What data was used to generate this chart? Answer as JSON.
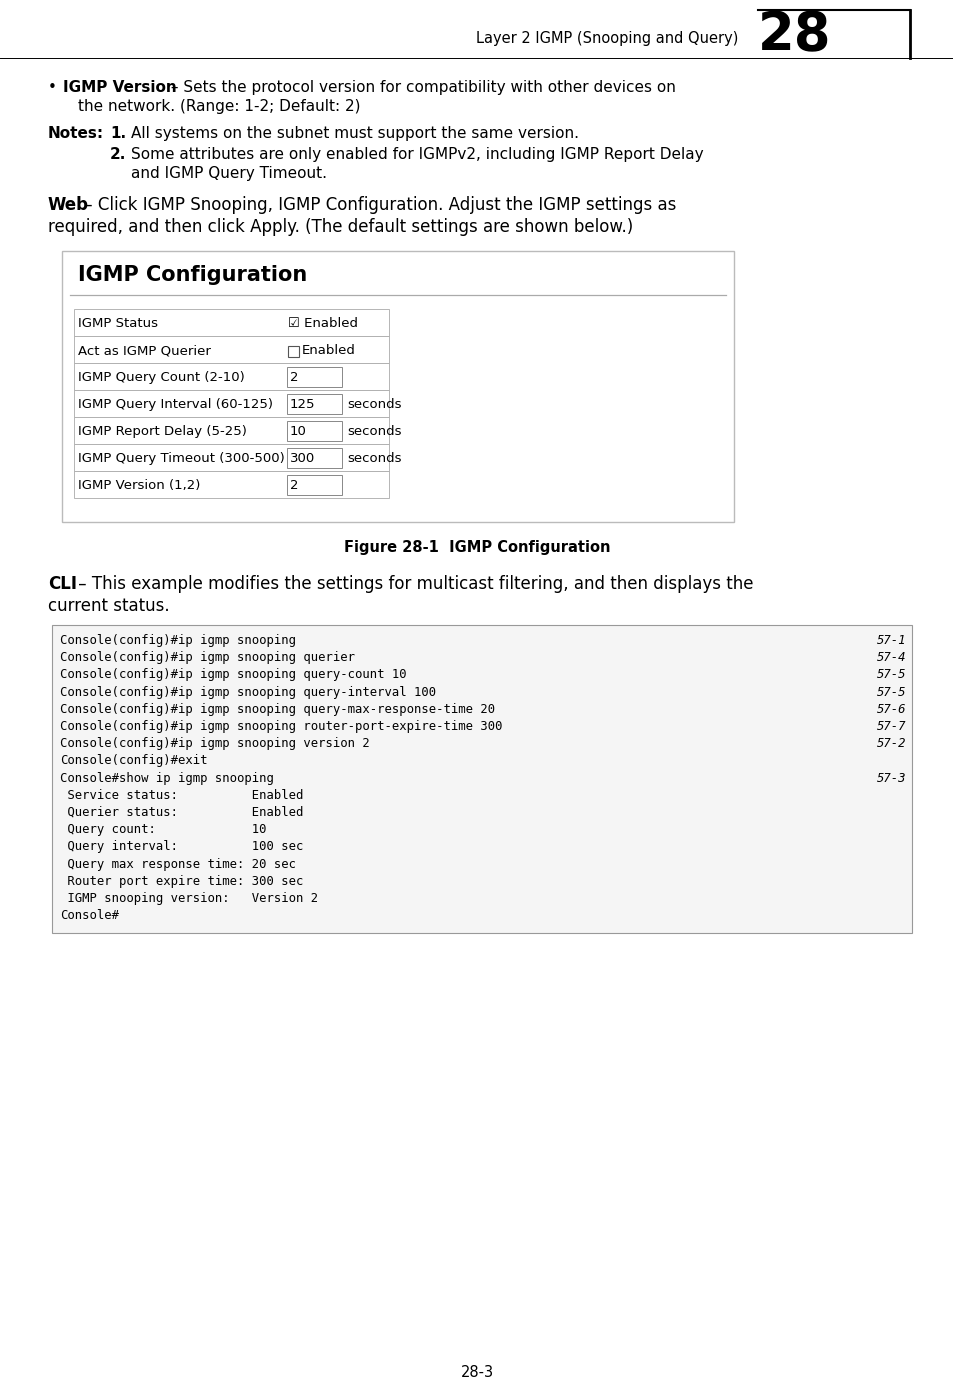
{
  "page_header": "Layer 2 IGMP (Snooping and Query)",
  "chapter_num": "28",
  "bullet_bold": "IGMP Version",
  "bullet_rest": " – Sets the protocol version for compatibility with other devices on",
  "bullet_line2": "the network. (Range: 1-2; Default: 2)",
  "notes_label": "Notes:",
  "note1_num": "1.",
  "note1_text": "All systems on the subnet must support the same version.",
  "note2_num": "2.",
  "note2_text": "Some attributes are only enabled for IGMPv2, including IGMP Report Delay",
  "note2_line2": "and IGMP Query Timeout.",
  "web_bold": "Web",
  "web_rest": " – Click IGMP Snooping, IGMP Configuration. Adjust the IGMP settings as",
  "web_line2": "required, and then click Apply. (The default settings are shown below.)",
  "igmp_config_title": "IGMP Configuration",
  "table_rows": [
    {
      "label": "IGMP Status",
      "value": "Enabled",
      "checkbox": true,
      "checked": true,
      "suffix": ""
    },
    {
      "label": "Act as IGMP Querier",
      "value": "Enabled",
      "checkbox": true,
      "checked": false,
      "suffix": ""
    },
    {
      "label": "IGMP Query Count (2-10)",
      "value": "2",
      "checkbox": false,
      "checked": false,
      "suffix": ""
    },
    {
      "label": "IGMP Query Interval (60-125)",
      "value": "125",
      "checkbox": false,
      "checked": false,
      "suffix": "seconds"
    },
    {
      "label": "IGMP Report Delay (5-25)",
      "value": "10",
      "checkbox": false,
      "checked": false,
      "suffix": "seconds"
    },
    {
      "label": "IGMP Query Timeout (300-500)",
      "value": "300",
      "checkbox": false,
      "checked": false,
      "suffix": "seconds"
    },
    {
      "label": "IGMP Version (1,2)",
      "value": "2",
      "checkbox": false,
      "checked": false,
      "suffix": ""
    }
  ],
  "figure_caption": "Figure 28-1  IGMP Configuration",
  "cli_bold": "CLI",
  "cli_rest": " – This example modifies the settings for multicast filtering, and then displays the",
  "cli_line2": "current status.",
  "code_lines": [
    {
      "text": "Console(config)#ip igmp snooping",
      "ref": "57-1"
    },
    {
      "text": "Console(config)#ip igmp snooping querier",
      "ref": "57-4"
    },
    {
      "text": "Console(config)#ip igmp snooping query-count 10",
      "ref": "57-5"
    },
    {
      "text": "Console(config)#ip igmp snooping query-interval 100",
      "ref": "57-5"
    },
    {
      "text": "Console(config)#ip igmp snooping query-max-response-time 20",
      "ref": "57-6"
    },
    {
      "text": "Console(config)#ip igmp snooping router-port-expire-time 300",
      "ref": "57-7"
    },
    {
      "text": "Console(config)#ip igmp snooping version 2",
      "ref": "57-2"
    },
    {
      "text": "Console(config)#exit",
      "ref": ""
    },
    {
      "text": "Console#show ip igmp snooping",
      "ref": "57-3"
    },
    {
      "text": " Service status:          Enabled",
      "ref": ""
    },
    {
      "text": " Querier status:          Enabled",
      "ref": ""
    },
    {
      "text": " Query count:             10",
      "ref": ""
    },
    {
      "text": " Query interval:          100 sec",
      "ref": ""
    },
    {
      "text": " Query max response time: 20 sec",
      "ref": ""
    },
    {
      "text": " Router port expire time: 300 sec",
      "ref": ""
    },
    {
      "text": " IGMP snooping version:   Version 2",
      "ref": ""
    },
    {
      "text": "Console#",
      "ref": ""
    }
  ],
  "page_number": "28-3",
  "bg_color": "#ffffff"
}
